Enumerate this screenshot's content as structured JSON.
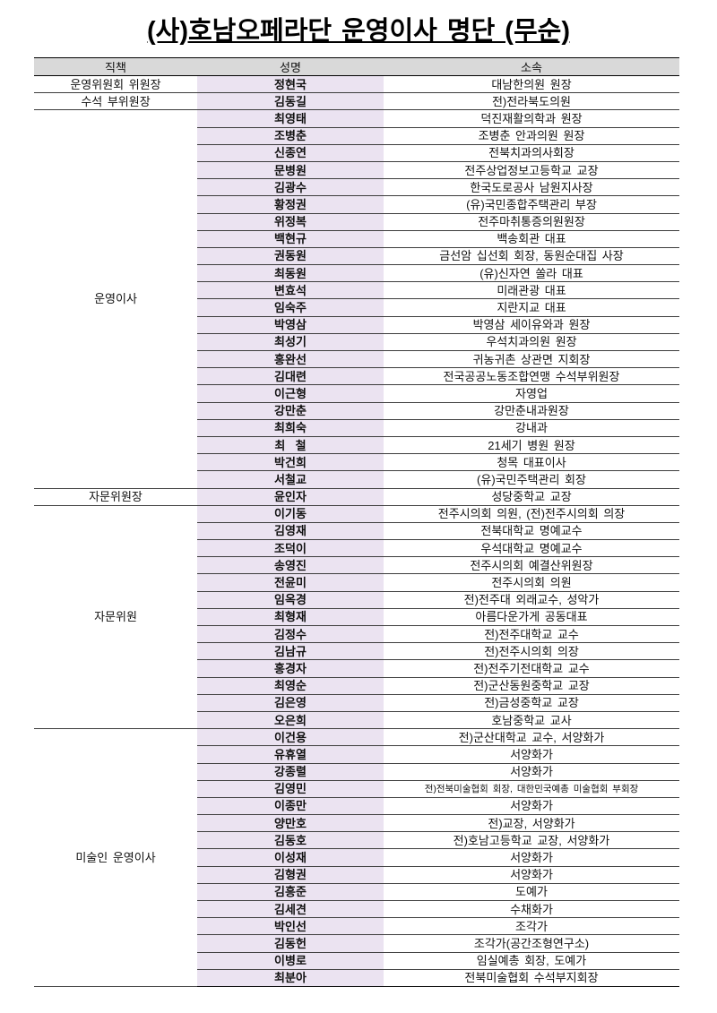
{
  "title": "(사)호남오페라단 운영이사 명단 (무순)",
  "colors": {
    "header_bg": "#d9d9d9",
    "name_bg": "#ebe3f1",
    "border": "#3c3c3c"
  },
  "table": {
    "headers": [
      "직책",
      "성명",
      "소속"
    ],
    "groups": [
      {
        "position": "운영위원회 위원장",
        "members": [
          {
            "name": "정현국",
            "affiliation": "대남한의원 원장"
          }
        ]
      },
      {
        "position": "수석 부위원장",
        "members": [
          {
            "name": "김동길",
            "affiliation": "전)전라북도의원"
          }
        ]
      },
      {
        "position": "운영이사",
        "members": [
          {
            "name": "최영태",
            "affiliation": "덕진재활의학과 원장"
          },
          {
            "name": "조병춘",
            "affiliation": "조병춘 안과의원 원장"
          },
          {
            "name": "신종연",
            "affiliation": "전북치과의사회장"
          },
          {
            "name": "문병원",
            "affiliation": "전주상업정보고등학교 교장"
          },
          {
            "name": "김광수",
            "affiliation": "한국도로공사 남원지사장"
          },
          {
            "name": "황정권",
            "affiliation": "(유)국민종합주택관리 부장"
          },
          {
            "name": "위정복",
            "affiliation": "전주마취통증의원원장"
          },
          {
            "name": "백현규",
            "affiliation": "백송회관 대표"
          },
          {
            "name": "권동원",
            "affiliation": "금선암 십선회 회장, 동원순대집 사장"
          },
          {
            "name": "최동원",
            "affiliation": "(유)신자연 쏠라 대표"
          },
          {
            "name": "변효석",
            "affiliation": "미래관광 대표"
          },
          {
            "name": "임숙주",
            "affiliation": "지란지교 대표"
          },
          {
            "name": "박영삼",
            "affiliation": "박영삼 세이유와과 원장"
          },
          {
            "name": "최성기",
            "affiliation": "우석치과의원 원장"
          },
          {
            "name": "홍완선",
            "affiliation": "귀농귀촌 상관면 지회장"
          },
          {
            "name": "김대련",
            "affiliation": "전국공공노동조합연맹 수석부위원장"
          },
          {
            "name": "이근형",
            "affiliation": "자영업"
          },
          {
            "name": "강만춘",
            "affiliation": "강만춘내과원장"
          },
          {
            "name": "최희숙",
            "affiliation": "강내과"
          },
          {
            "name": "최  철",
            "affiliation": "21세기 병원 원장"
          },
          {
            "name": "박건희",
            "affiliation": "청목 대표이사"
          },
          {
            "name": "서철교",
            "affiliation": "(유)국민주택관리 회장"
          }
        ]
      },
      {
        "position": "자문위원장",
        "members": [
          {
            "name": "윤인자",
            "affiliation": "성당중학교 교장"
          }
        ]
      },
      {
        "position": "자문위원",
        "members": [
          {
            "name": "이기동",
            "affiliation": "전주시의회 의원, (전)전주시의회 의장"
          },
          {
            "name": "김영재",
            "affiliation": "전북대학교 명예교수"
          },
          {
            "name": "조덕이",
            "affiliation": "우석대학교 명예교수"
          },
          {
            "name": "송영진",
            "affiliation": "전주시의회 예결산위원장"
          },
          {
            "name": "전윤미",
            "affiliation": "전주시의회 의원"
          },
          {
            "name": "임옥경",
            "affiliation": "전)전주대 외래교수, 성악가"
          },
          {
            "name": "최형재",
            "affiliation": "아름다운가게 공동대표"
          },
          {
            "name": "김정수",
            "affiliation": "전)전주대학교 교수"
          },
          {
            "name": "김남규",
            "affiliation": "전)전주시의회 의장"
          },
          {
            "name": "홍경자",
            "affiliation": "전)전주기전대학교 교수"
          },
          {
            "name": "최영순",
            "affiliation": "전)군산동원중학교 교장"
          },
          {
            "name": "김은영",
            "affiliation": "전)금성중학교 교장"
          },
          {
            "name": "오은희",
            "affiliation": "호남중학교 교사"
          }
        ]
      },
      {
        "position": "미술인 운영이사",
        "members": [
          {
            "name": "이건용",
            "affiliation": "전)군산대학교 교수, 서양화가"
          },
          {
            "name": "유휴열",
            "affiliation": "서양화가"
          },
          {
            "name": "강종렬",
            "affiliation": "서양화가"
          },
          {
            "name": "김영민",
            "affiliation": "전)전북미술협회 회장, 대한민국예총 미술협회 부회장",
            "small": true
          },
          {
            "name": "이종만",
            "affiliation": "서양화가"
          },
          {
            "name": "양만호",
            "affiliation": "전)교장, 서양화가"
          },
          {
            "name": "김동호",
            "affiliation": "전)호남고등학교 교장, 서양화가"
          },
          {
            "name": "이성재",
            "affiliation": "서양화가"
          },
          {
            "name": "김형권",
            "affiliation": "서양화가"
          },
          {
            "name": "김흥준",
            "affiliation": "도예가"
          },
          {
            "name": "김세견",
            "affiliation": "수채화가"
          },
          {
            "name": "박인선",
            "affiliation": "조각가"
          },
          {
            "name": "김동헌",
            "affiliation": "조각가(공간조형연구소)"
          },
          {
            "name": "이병로",
            "affiliation": "임실예총 회장, 도예가"
          },
          {
            "name": "최분아",
            "affiliation": "전북미술협회 수석부지회장"
          }
        ]
      }
    ]
  }
}
